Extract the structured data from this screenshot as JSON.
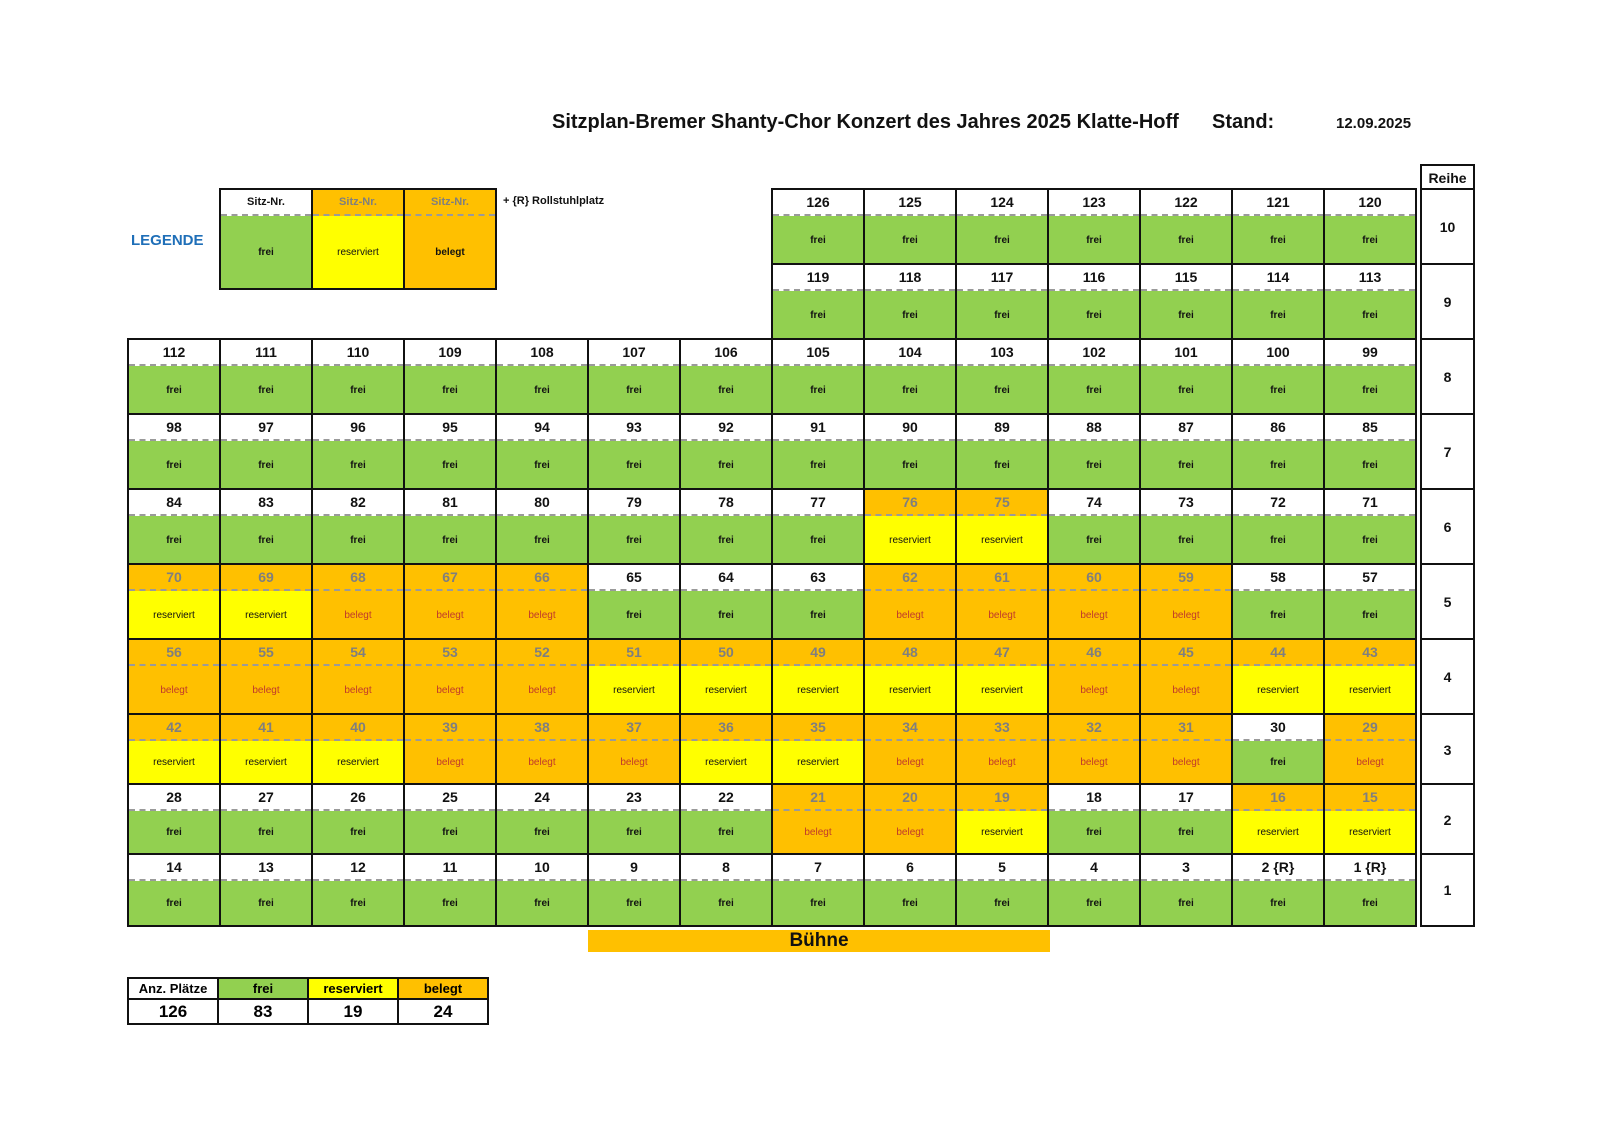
{
  "header": {
    "title": "Sitzplan-Bremer Shanty-Chor Konzert des Jahres  2025 Klatte-Hoff",
    "stand_label": "Stand:",
    "stand_date": "12.09.2025"
  },
  "legend": {
    "label": "LEGENDE",
    "note": "+ {R}   Rollstuhlplatz",
    "items": [
      {
        "header": "Sitz-Nr.",
        "status": "frei",
        "kind": "frei"
      },
      {
        "header": "Sitz-Nr.",
        "status": "reserviert",
        "kind": "reserviert"
      },
      {
        "header": "Sitz-Nr.",
        "status": "belegt",
        "kind": "belegt"
      }
    ]
  },
  "reihe_header": "Reihe",
  "stage_label": "Bühne",
  "colors": {
    "frei": "#92d050",
    "reserviert": "#ffff00",
    "belegt": "#ffc000",
    "legend_label": "#1f6fb8"
  },
  "rows": [
    {
      "reihe": "10",
      "start_col": 7,
      "seats": [
        {
          "n": "126",
          "s": "frei"
        },
        {
          "n": "125",
          "s": "frei"
        },
        {
          "n": "124",
          "s": "frei"
        },
        {
          "n": "123",
          "s": "frei"
        },
        {
          "n": "122",
          "s": "frei"
        },
        {
          "n": "121",
          "s": "frei"
        },
        {
          "n": "120",
          "s": "frei"
        }
      ]
    },
    {
      "reihe": "9",
      "start_col": 7,
      "seats": [
        {
          "n": "119",
          "s": "frei"
        },
        {
          "n": "118",
          "s": "frei"
        },
        {
          "n": "117",
          "s": "frei"
        },
        {
          "n": "116",
          "s": "frei"
        },
        {
          "n": "115",
          "s": "frei"
        },
        {
          "n": "114",
          "s": "frei"
        },
        {
          "n": "113",
          "s": "frei"
        }
      ]
    },
    {
      "reihe": "8",
      "start_col": 0,
      "seats": [
        {
          "n": "112",
          "s": "frei"
        },
        {
          "n": "111",
          "s": "frei"
        },
        {
          "n": "110",
          "s": "frei"
        },
        {
          "n": "109",
          "s": "frei"
        },
        {
          "n": "108",
          "s": "frei"
        },
        {
          "n": "107",
          "s": "frei"
        },
        {
          "n": "106",
          "s": "frei"
        },
        {
          "n": "105",
          "s": "frei"
        },
        {
          "n": "104",
          "s": "frei"
        },
        {
          "n": "103",
          "s": "frei"
        },
        {
          "n": "102",
          "s": "frei"
        },
        {
          "n": "101",
          "s": "frei"
        },
        {
          "n": "100",
          "s": "frei"
        },
        {
          "n": "99",
          "s": "frei"
        }
      ]
    },
    {
      "reihe": "7",
      "start_col": 0,
      "seats": [
        {
          "n": "98",
          "s": "frei"
        },
        {
          "n": "97",
          "s": "frei"
        },
        {
          "n": "96",
          "s": "frei"
        },
        {
          "n": "95",
          "s": "frei"
        },
        {
          "n": "94",
          "s": "frei"
        },
        {
          "n": "93",
          "s": "frei"
        },
        {
          "n": "92",
          "s": "frei"
        },
        {
          "n": "91",
          "s": "frei"
        },
        {
          "n": "90",
          "s": "frei"
        },
        {
          "n": "89",
          "s": "frei"
        },
        {
          "n": "88",
          "s": "frei"
        },
        {
          "n": "87",
          "s": "frei"
        },
        {
          "n": "86",
          "s": "frei"
        },
        {
          "n": "85",
          "s": "frei"
        }
      ]
    },
    {
      "reihe": "6",
      "start_col": 0,
      "seats": [
        {
          "n": "84",
          "s": "frei"
        },
        {
          "n": "83",
          "s": "frei"
        },
        {
          "n": "82",
          "s": "frei"
        },
        {
          "n": "81",
          "s": "frei"
        },
        {
          "n": "80",
          "s": "frei"
        },
        {
          "n": "79",
          "s": "frei"
        },
        {
          "n": "78",
          "s": "frei"
        },
        {
          "n": "77",
          "s": "frei"
        },
        {
          "n": "76",
          "s": "reserviert"
        },
        {
          "n": "75",
          "s": "reserviert"
        },
        {
          "n": "74",
          "s": "frei"
        },
        {
          "n": "73",
          "s": "frei"
        },
        {
          "n": "72",
          "s": "frei"
        },
        {
          "n": "71",
          "s": "frei"
        }
      ]
    },
    {
      "reihe": "5",
      "start_col": 0,
      "seats": [
        {
          "n": "70",
          "s": "reserviert"
        },
        {
          "n": "69",
          "s": "reserviert"
        },
        {
          "n": "68",
          "s": "belegt"
        },
        {
          "n": "67",
          "s": "belegt"
        },
        {
          "n": "66",
          "s": "belegt"
        },
        {
          "n": "65",
          "s": "frei"
        },
        {
          "n": "64",
          "s": "frei"
        },
        {
          "n": "63",
          "s": "frei"
        },
        {
          "n": "62",
          "s": "belegt"
        },
        {
          "n": "61",
          "s": "belegt"
        },
        {
          "n": "60",
          "s": "belegt"
        },
        {
          "n": "59",
          "s": "belegt"
        },
        {
          "n": "58",
          "s": "frei"
        },
        {
          "n": "57",
          "s": "frei"
        }
      ]
    },
    {
      "reihe": "4",
      "start_col": 0,
      "seats": [
        {
          "n": "56",
          "s": "belegt"
        },
        {
          "n": "55",
          "s": "belegt"
        },
        {
          "n": "54",
          "s": "belegt"
        },
        {
          "n": "53",
          "s": "belegt"
        },
        {
          "n": "52",
          "s": "belegt"
        },
        {
          "n": "51",
          "s": "reserviert"
        },
        {
          "n": "50",
          "s": "reserviert"
        },
        {
          "n": "49",
          "s": "reserviert"
        },
        {
          "n": "48",
          "s": "reserviert"
        },
        {
          "n": "47",
          "s": "reserviert"
        },
        {
          "n": "46",
          "s": "belegt"
        },
        {
          "n": "45",
          "s": "belegt"
        },
        {
          "n": "44",
          "s": "reserviert"
        },
        {
          "n": "43",
          "s": "reserviert"
        }
      ]
    },
    {
      "reihe": "3",
      "start_col": 0,
      "seats": [
        {
          "n": "42",
          "s": "reserviert"
        },
        {
          "n": "41",
          "s": "reserviert"
        },
        {
          "n": "40",
          "s": "reserviert"
        },
        {
          "n": "39",
          "s": "belegt"
        },
        {
          "n": "38",
          "s": "belegt"
        },
        {
          "n": "37",
          "s": "belegt"
        },
        {
          "n": "36",
          "s": "reserviert"
        },
        {
          "n": "35",
          "s": "reserviert"
        },
        {
          "n": "34",
          "s": "belegt"
        },
        {
          "n": "33",
          "s": "belegt"
        },
        {
          "n": "32",
          "s": "belegt"
        },
        {
          "n": "31",
          "s": "belegt"
        },
        {
          "n": "30",
          "s": "frei"
        },
        {
          "n": "29",
          "s": "belegt"
        }
      ]
    },
    {
      "reihe": "2",
      "start_col": 0,
      "seats": [
        {
          "n": "28",
          "s": "frei"
        },
        {
          "n": "27",
          "s": "frei"
        },
        {
          "n": "26",
          "s": "frei"
        },
        {
          "n": "25",
          "s": "frei"
        },
        {
          "n": "24",
          "s": "frei"
        },
        {
          "n": "23",
          "s": "frei"
        },
        {
          "n": "22",
          "s": "frei"
        },
        {
          "n": "21",
          "s": "belegt"
        },
        {
          "n": "20",
          "s": "belegt"
        },
        {
          "n": "19",
          "s": "reserviert"
        },
        {
          "n": "18",
          "s": "frei"
        },
        {
          "n": "17",
          "s": "frei"
        },
        {
          "n": "16",
          "s": "reserviert"
        },
        {
          "n": "15",
          "s": "reserviert"
        }
      ]
    },
    {
      "reihe": "1",
      "start_col": 0,
      "seats": [
        {
          "n": "14",
          "s": "frei"
        },
        {
          "n": "13",
          "s": "frei"
        },
        {
          "n": "12",
          "s": "frei"
        },
        {
          "n": "11",
          "s": "frei"
        },
        {
          "n": "10",
          "s": "frei"
        },
        {
          "n": "9",
          "s": "frei"
        },
        {
          "n": "8",
          "s": "frei"
        },
        {
          "n": "7",
          "s": "frei"
        },
        {
          "n": "6",
          "s": "frei"
        },
        {
          "n": "5",
          "s": "frei"
        },
        {
          "n": "4",
          "s": "frei"
        },
        {
          "n": "3",
          "s": "frei"
        },
        {
          "n": "2 {R}",
          "s": "frei"
        },
        {
          "n": "1 {R}",
          "s": "frei"
        }
      ]
    }
  ],
  "summary": {
    "headers": [
      "Anz. Plätze",
      "frei",
      "reserviert",
      "belegt"
    ],
    "values": [
      "126",
      "83",
      "19",
      "24"
    ]
  }
}
